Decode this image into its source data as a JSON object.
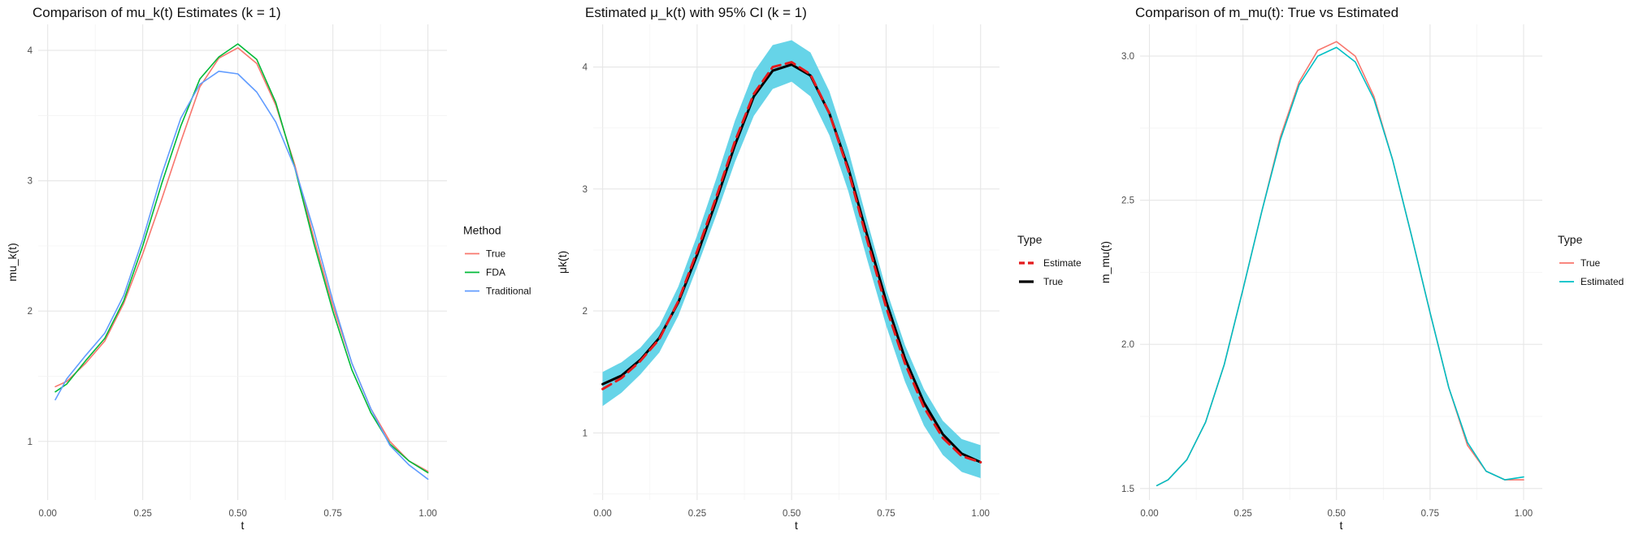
{
  "panels": [
    {
      "title": "Comparison of mu_k(t) Estimates (k = 1)",
      "xlabel": "t",
      "ylabel": "mu_k(t)",
      "legend_title": "Method",
      "x_ticks": [
        "0.00",
        "0.25",
        "0.50",
        "0.75",
        "1.00"
      ],
      "y_ticks": [
        "1",
        "2",
        "3",
        "4"
      ]
    },
    {
      "title": "Estimated μ_k(t) with 95% CI (k = 1)",
      "xlabel": "t",
      "ylabel": "μk(t)",
      "legend_title": "Type",
      "x_ticks": [
        "0.00",
        "0.25",
        "0.50",
        "0.75",
        "1.00"
      ],
      "y_ticks": [
        "1",
        "2",
        "3",
        "4"
      ]
    },
    {
      "title": "Comparison of m_mu(t): True vs Estimated",
      "xlabel": "t",
      "ylabel": "m_mu(t)",
      "legend_title": "Type",
      "x_ticks": [
        "0.00",
        "0.25",
        "0.50",
        "0.75",
        "1.00"
      ],
      "y_ticks": [
        "1.5",
        "2.0",
        "2.5",
        "3.0"
      ]
    }
  ],
  "chart_data": [
    {
      "type": "line",
      "title": "Comparison of mu_k(t) Estimates (k = 1)",
      "xlabel": "t",
      "ylabel": "mu_k(t)",
      "xlim": [
        -0.025,
        1.05
      ],
      "ylim": [
        0.55,
        4.2
      ],
      "grid": true,
      "legend_title": "Method",
      "legend_position": "right",
      "x": [
        0.02,
        0.05,
        0.1,
        0.15,
        0.2,
        0.25,
        0.3,
        0.35,
        0.4,
        0.45,
        0.5,
        0.55,
        0.6,
        0.65,
        0.7,
        0.75,
        0.8,
        0.85,
        0.9,
        0.95,
        1.0
      ],
      "series": [
        {
          "name": "True",
          "color": "#F8766D",
          "values": [
            1.42,
            1.46,
            1.6,
            1.77,
            2.06,
            2.44,
            2.86,
            3.3,
            3.72,
            3.94,
            4.02,
            3.9,
            3.58,
            3.12,
            2.56,
            2.04,
            1.6,
            1.25,
            1.0,
            0.85,
            0.77
          ]
        },
        {
          "name": "FDA",
          "color": "#00BA38",
          "values": [
            1.38,
            1.44,
            1.62,
            1.79,
            2.08,
            2.5,
            2.98,
            3.42,
            3.78,
            3.95,
            4.05,
            3.93,
            3.6,
            3.1,
            2.52,
            2.0,
            1.55,
            1.22,
            0.98,
            0.85,
            0.76
          ]
        },
        {
          "name": "Traditional",
          "color": "#619CFF",
          "values": [
            1.32,
            1.48,
            1.66,
            1.83,
            2.12,
            2.55,
            3.05,
            3.48,
            3.74,
            3.84,
            3.82,
            3.68,
            3.45,
            3.1,
            2.62,
            2.08,
            1.6,
            1.25,
            0.97,
            0.82,
            0.71
          ]
        }
      ]
    },
    {
      "type": "line",
      "title": "Estimated μ_k(t) with 95% CI (k = 1)",
      "xlabel": "t",
      "ylabel": "μk(t)",
      "xlim": [
        -0.025,
        1.05
      ],
      "ylim": [
        0.45,
        4.35
      ],
      "grid": true,
      "legend_title": "Type",
      "legend_position": "right",
      "band_color": "#66D4E8",
      "x": [
        0.0,
        0.05,
        0.1,
        0.15,
        0.2,
        0.25,
        0.3,
        0.35,
        0.4,
        0.45,
        0.5,
        0.55,
        0.6,
        0.65,
        0.7,
        0.75,
        0.8,
        0.85,
        0.9,
        0.95,
        1.0
      ],
      "ci_lower": [
        1.22,
        1.33,
        1.48,
        1.66,
        1.96,
        2.36,
        2.78,
        3.22,
        3.6,
        3.82,
        3.88,
        3.76,
        3.44,
        2.98,
        2.42,
        1.88,
        1.42,
        1.06,
        0.82,
        0.68,
        0.63
      ],
      "ci_upper": [
        1.5,
        1.58,
        1.7,
        1.88,
        2.2,
        2.62,
        3.08,
        3.56,
        3.96,
        4.18,
        4.22,
        4.12,
        3.8,
        3.32,
        2.74,
        2.18,
        1.72,
        1.36,
        1.1,
        0.95,
        0.9
      ],
      "series": [
        {
          "name": "Estimate",
          "color": "#E41A1C",
          "dash": true,
          "values": [
            1.36,
            1.45,
            1.59,
            1.77,
            2.08,
            2.49,
            2.93,
            3.39,
            3.78,
            4.0,
            4.04,
            3.94,
            3.62,
            3.15,
            2.58,
            2.03,
            1.57,
            1.21,
            0.96,
            0.81,
            0.76
          ]
        },
        {
          "name": "True",
          "color": "#000000",
          "dash": false,
          "values": [
            1.4,
            1.47,
            1.6,
            1.78,
            2.07,
            2.46,
            2.9,
            3.36,
            3.76,
            3.97,
            4.02,
            3.93,
            3.62,
            3.17,
            2.62,
            2.08,
            1.61,
            1.25,
            0.99,
            0.83,
            0.76
          ]
        }
      ]
    },
    {
      "type": "line",
      "title": "Comparison of m_mu(t): True vs Estimated",
      "xlabel": "t",
      "ylabel": "m_mu(t)",
      "xlim": [
        -0.025,
        1.05
      ],
      "ylim": [
        1.46,
        3.11
      ],
      "grid": true,
      "legend_title": "Type",
      "legend_position": "right",
      "x": [
        0.02,
        0.05,
        0.1,
        0.15,
        0.2,
        0.25,
        0.3,
        0.35,
        0.4,
        0.45,
        0.5,
        0.55,
        0.6,
        0.65,
        0.7,
        0.75,
        0.8,
        0.85,
        0.9,
        0.95,
        1.0
      ],
      "series": [
        {
          "name": "True",
          "color": "#F8766D",
          "values": [
            1.51,
            1.53,
            1.6,
            1.73,
            1.93,
            2.19,
            2.46,
            2.72,
            2.91,
            3.02,
            3.05,
            3.0,
            2.86,
            2.64,
            2.38,
            2.11,
            1.85,
            1.65,
            1.56,
            1.53,
            1.53
          ]
        },
        {
          "name": "Estimated",
          "color": "#00BFC4",
          "values": [
            1.51,
            1.53,
            1.6,
            1.73,
            1.93,
            2.19,
            2.46,
            2.71,
            2.9,
            3.0,
            3.03,
            2.98,
            2.85,
            2.64,
            2.38,
            2.11,
            1.85,
            1.66,
            1.56,
            1.53,
            1.54
          ]
        }
      ]
    }
  ]
}
